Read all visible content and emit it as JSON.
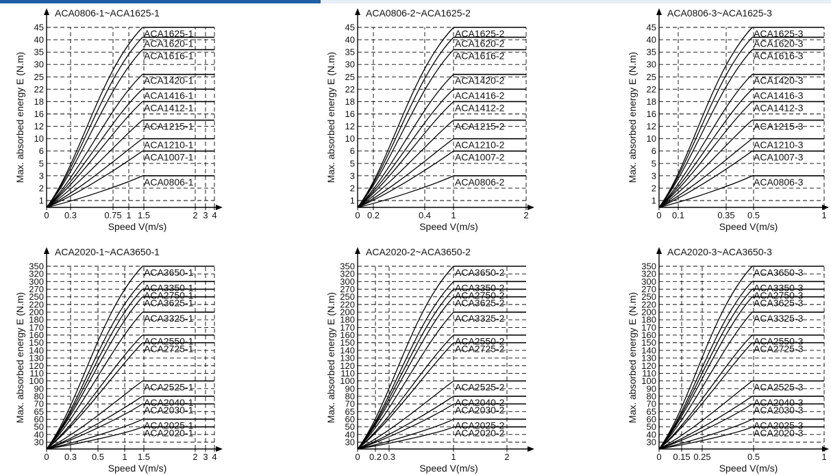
{
  "colors": {
    "accent": "#1f5fa8",
    "band": "#e6eef7",
    "line": "#000000",
    "grid": "#000000"
  },
  "chart_data": [
    {
      "type": "line",
      "title": "ACA0806-1~ACA1625-1",
      "xlabel": "Speed V(m/s)",
      "ylabel": "Max. absorbed energy E  (N.m)",
      "grid": true,
      "x_scale": "log",
      "xlim": [
        0,
        4
      ],
      "xticks": [
        0,
        0.3,
        0.75,
        1,
        1.5,
        2,
        3,
        4
      ],
      "xtick_labels": [
        "0",
        "0.3",
        "0.75",
        "1",
        "1.5",
        "2",
        "3",
        "4"
      ],
      "ylim": [
        0,
        45
      ],
      "yticks": [
        1,
        2,
        3,
        5,
        6,
        10,
        12,
        16,
        18,
        22,
        25,
        30,
        35,
        40,
        45
      ],
      "y_positions": [
        1,
        2,
        3,
        5,
        6,
        10,
        12,
        16,
        18,
        22,
        25,
        30,
        35,
        40,
        45
      ],
      "x_end": 1.5,
      "series": [
        {
          "name": "ACA1625-1",
          "values": [
            45
          ]
        },
        {
          "name": "ACA1620-1",
          "values": [
            41
          ]
        },
        {
          "name": "ACA1616-1",
          "values": [
            36
          ]
        },
        {
          "name": "ACA1420-1",
          "values": [
            26
          ]
        },
        {
          "name": "ACA1416-1",
          "values": [
            22
          ]
        },
        {
          "name": "ACA1412-1",
          "values": [
            18
          ]
        },
        {
          "name": "ACA1215-1",
          "values": [
            14
          ]
        },
        {
          "name": "ACA1210-1",
          "values": [
            10
          ]
        },
        {
          "name": "ACA1007-1",
          "values": [
            6
          ]
        },
        {
          "name": "ACA0806-1",
          "values": [
            3
          ]
        }
      ]
    },
    {
      "type": "line",
      "title": "ACA0806-2~ACA1625-2",
      "xlabel": "Speed V(m/s)",
      "ylabel": "Max. absorbed energy E  (N.m)",
      "grid": true,
      "x_scale": "linear",
      "xlim": [
        0,
        2
      ],
      "xticks": [
        0,
        0.2,
        0.4,
        1,
        2
      ],
      "xtick_labels": [
        "0",
        "0.2",
        "0.4",
        "1",
        "2"
      ],
      "ylim": [
        0,
        45
      ],
      "yticks": [
        1,
        2,
        3,
        5,
        6,
        10,
        12,
        16,
        18,
        22,
        25,
        30,
        35,
        40,
        45
      ],
      "y_positions": [
        1,
        2,
        3,
        5,
        6,
        10,
        12,
        16,
        18,
        22,
        25,
        30,
        35,
        40,
        45
      ],
      "x_end": 1,
      "series": [
        {
          "name": "ACA1625-2",
          "values": [
            45
          ]
        },
        {
          "name": "ACA1620-2",
          "values": [
            41
          ]
        },
        {
          "name": "ACA1616-2",
          "values": [
            36
          ]
        },
        {
          "name": "ACA1420-2",
          "values": [
            26
          ]
        },
        {
          "name": "ACA1416-2",
          "values": [
            22
          ]
        },
        {
          "name": "ACA1412-2",
          "values": [
            18
          ]
        },
        {
          "name": "ACA1215-2",
          "values": [
            14
          ]
        },
        {
          "name": "ACA1210-2",
          "values": [
            10
          ]
        },
        {
          "name": "ACA1007-2",
          "values": [
            6
          ]
        },
        {
          "name": "ACA0806-2",
          "values": [
            3
          ]
        }
      ]
    },
    {
      "type": "line",
      "title": "ACA0806-3~ACA1625-3",
      "xlabel": "Speed V(m/s)",
      "ylabel": "Max. absorbed energy E  (N.m)",
      "grid": true,
      "x_scale": "linear",
      "xlim": [
        0,
        1
      ],
      "xticks": [
        0,
        0.1,
        0.35,
        0.5,
        1
      ],
      "xtick_labels": [
        "0",
        "0.1",
        "0.35",
        "0.5",
        "1"
      ],
      "ylim": [
        0,
        45
      ],
      "yticks": [
        1,
        2,
        3,
        5,
        6,
        10,
        12,
        16,
        18,
        22,
        25,
        30,
        35,
        40,
        45
      ],
      "y_positions": [
        1,
        2,
        3,
        5,
        6,
        10,
        12,
        16,
        18,
        22,
        25,
        30,
        35,
        40,
        45
      ],
      "x_end": 0.5,
      "series": [
        {
          "name": "ACA1625-3",
          "values": [
            45
          ]
        },
        {
          "name": "ACA1620-3",
          "values": [
            41
          ]
        },
        {
          "name": "ACA1616-3",
          "values": [
            36
          ]
        },
        {
          "name": "ACA1420-3",
          "values": [
            26
          ]
        },
        {
          "name": "ACA1416-3",
          "values": [
            22
          ]
        },
        {
          "name": "ACA1412-3",
          "values": [
            18
          ]
        },
        {
          "name": "ACA1215-3",
          "values": [
            14
          ]
        },
        {
          "name": "ACA1210-3",
          "values": [
            10
          ]
        },
        {
          "name": "ACA1007-3",
          "values": [
            6
          ]
        },
        {
          "name": "ACA0806-3",
          "values": [
            3
          ]
        }
      ]
    },
    {
      "type": "line",
      "title": "ACA2020-1~ACA3650-1",
      "xlabel": "Speed V(m/s)",
      "ylabel": "Max. absorbed energy E  (N.m)",
      "grid": true,
      "x_scale": "log",
      "xlim": [
        0,
        4
      ],
      "xticks": [
        0,
        0.3,
        0.5,
        1,
        1.5,
        2,
        3,
        4
      ],
      "xtick_labels": [
        "0",
        "0.3",
        "0.5",
        "1",
        "1.5",
        "2",
        "3",
        "4"
      ],
      "ylim": [
        20,
        350
      ],
      "yticks": [
        30,
        40,
        50,
        60,
        65,
        70,
        80,
        90,
        100,
        110,
        120,
        130,
        140,
        150,
        160,
        170,
        180,
        200,
        220,
        250,
        270,
        300,
        320,
        350
      ],
      "x_end": 1.5,
      "series": [
        {
          "name": "ACA3650-1",
          "values": [
            350
          ]
        },
        {
          "name": "ACA3350-1",
          "values": [
            300
          ]
        },
        {
          "name": "ACA2750-1",
          "values": [
            270
          ]
        },
        {
          "name": "ACA3625-1",
          "values": [
            250
          ]
        },
        {
          "name": "ACA3325-1",
          "values": [
            200
          ]
        },
        {
          "name": "ACA2550-1",
          "values": [
            160
          ]
        },
        {
          "name": "ACA2725-1",
          "values": [
            150
          ]
        },
        {
          "name": "ACA2525-1",
          "values": [
            100
          ]
        },
        {
          "name": "ACA2040-1",
          "values": [
            80
          ]
        },
        {
          "name": "ACA2030-1",
          "values": [
            70
          ]
        },
        {
          "name": "ACA2025-1",
          "values": [
            60
          ]
        },
        {
          "name": "ACA2020-1",
          "values": [
            50
          ]
        }
      ]
    },
    {
      "type": "line",
      "title": "ACA2020-2~ACA3650-2",
      "xlabel": "Speed V(m/s)",
      "ylabel": "Max. absorbed energy E  (N.m)",
      "grid": true,
      "x_scale": "linear",
      "xlim": [
        0,
        2
      ],
      "xticks": [
        0,
        0.2,
        0.3,
        1,
        2
      ],
      "xtick_labels": [
        "0",
        "0.2",
        "0.3",
        "1",
        "2"
      ],
      "ylim": [
        20,
        350
      ],
      "yticks": [
        30,
        40,
        50,
        60,
        65,
        70,
        80,
        90,
        100,
        110,
        120,
        130,
        140,
        150,
        160,
        170,
        180,
        200,
        220,
        250,
        270,
        300,
        320,
        350
      ],
      "x_end": 1,
      "series": [
        {
          "name": "ACA3650-2",
          "values": [
            350
          ]
        },
        {
          "name": "ACA3350-2",
          "values": [
            300
          ]
        },
        {
          "name": "ACA2750-2",
          "values": [
            270
          ]
        },
        {
          "name": "ACA3625-2",
          "values": [
            250
          ]
        },
        {
          "name": "ACA3325-2",
          "values": [
            200
          ]
        },
        {
          "name": "ACA2550-2",
          "values": [
            160
          ]
        },
        {
          "name": "ACA2725-2",
          "values": [
            150
          ]
        },
        {
          "name": "ACA2525-2",
          "values": [
            100
          ]
        },
        {
          "name": "ACA2040-2",
          "values": [
            80
          ]
        },
        {
          "name": "ACA2030-2",
          "values": [
            70
          ]
        },
        {
          "name": "ACA2025-2",
          "values": [
            60
          ]
        },
        {
          "name": "ACA2020-2",
          "values": [
            50
          ]
        }
      ]
    },
    {
      "type": "line",
      "title": "ACA2020-3~ACA3650-3",
      "xlabel": "Speed V(m/s)",
      "ylabel": "Max. absorbed energy E  (N.m)",
      "grid": true,
      "x_scale": "linear",
      "xlim": [
        0,
        1
      ],
      "xticks": [
        0,
        0.15,
        0.25,
        0.5,
        1
      ],
      "xtick_labels": [
        "0",
        "0.15",
        "0.25",
        "0.5",
        "1"
      ],
      "ylim": [
        20,
        350
      ],
      "yticks": [
        30,
        40,
        50,
        60,
        65,
        70,
        80,
        90,
        100,
        110,
        120,
        130,
        140,
        150,
        160,
        170,
        180,
        200,
        220,
        250,
        270,
        300,
        320,
        350
      ],
      "x_end": 0.5,
      "series": [
        {
          "name": "ACA3650-3",
          "values": [
            350
          ]
        },
        {
          "name": "ACA3350-3",
          "values": [
            300
          ]
        },
        {
          "name": "ACA2750-3",
          "values": [
            270
          ]
        },
        {
          "name": "ACA3625-3",
          "values": [
            250
          ]
        },
        {
          "name": "ACA3325-3",
          "values": [
            200
          ]
        },
        {
          "name": "ACA2550-3",
          "values": [
            160
          ]
        },
        {
          "name": "ACA2725-3",
          "values": [
            150
          ]
        },
        {
          "name": "ACA2525-3",
          "values": [
            100
          ]
        },
        {
          "name": "ACA2040-3",
          "values": [
            80
          ]
        },
        {
          "name": "ACA2030-3",
          "values": [
            70
          ]
        },
        {
          "name": "ACA2025-3",
          "values": [
            60
          ]
        },
        {
          "name": "ACA2020-3",
          "values": [
            50
          ]
        }
      ]
    }
  ]
}
